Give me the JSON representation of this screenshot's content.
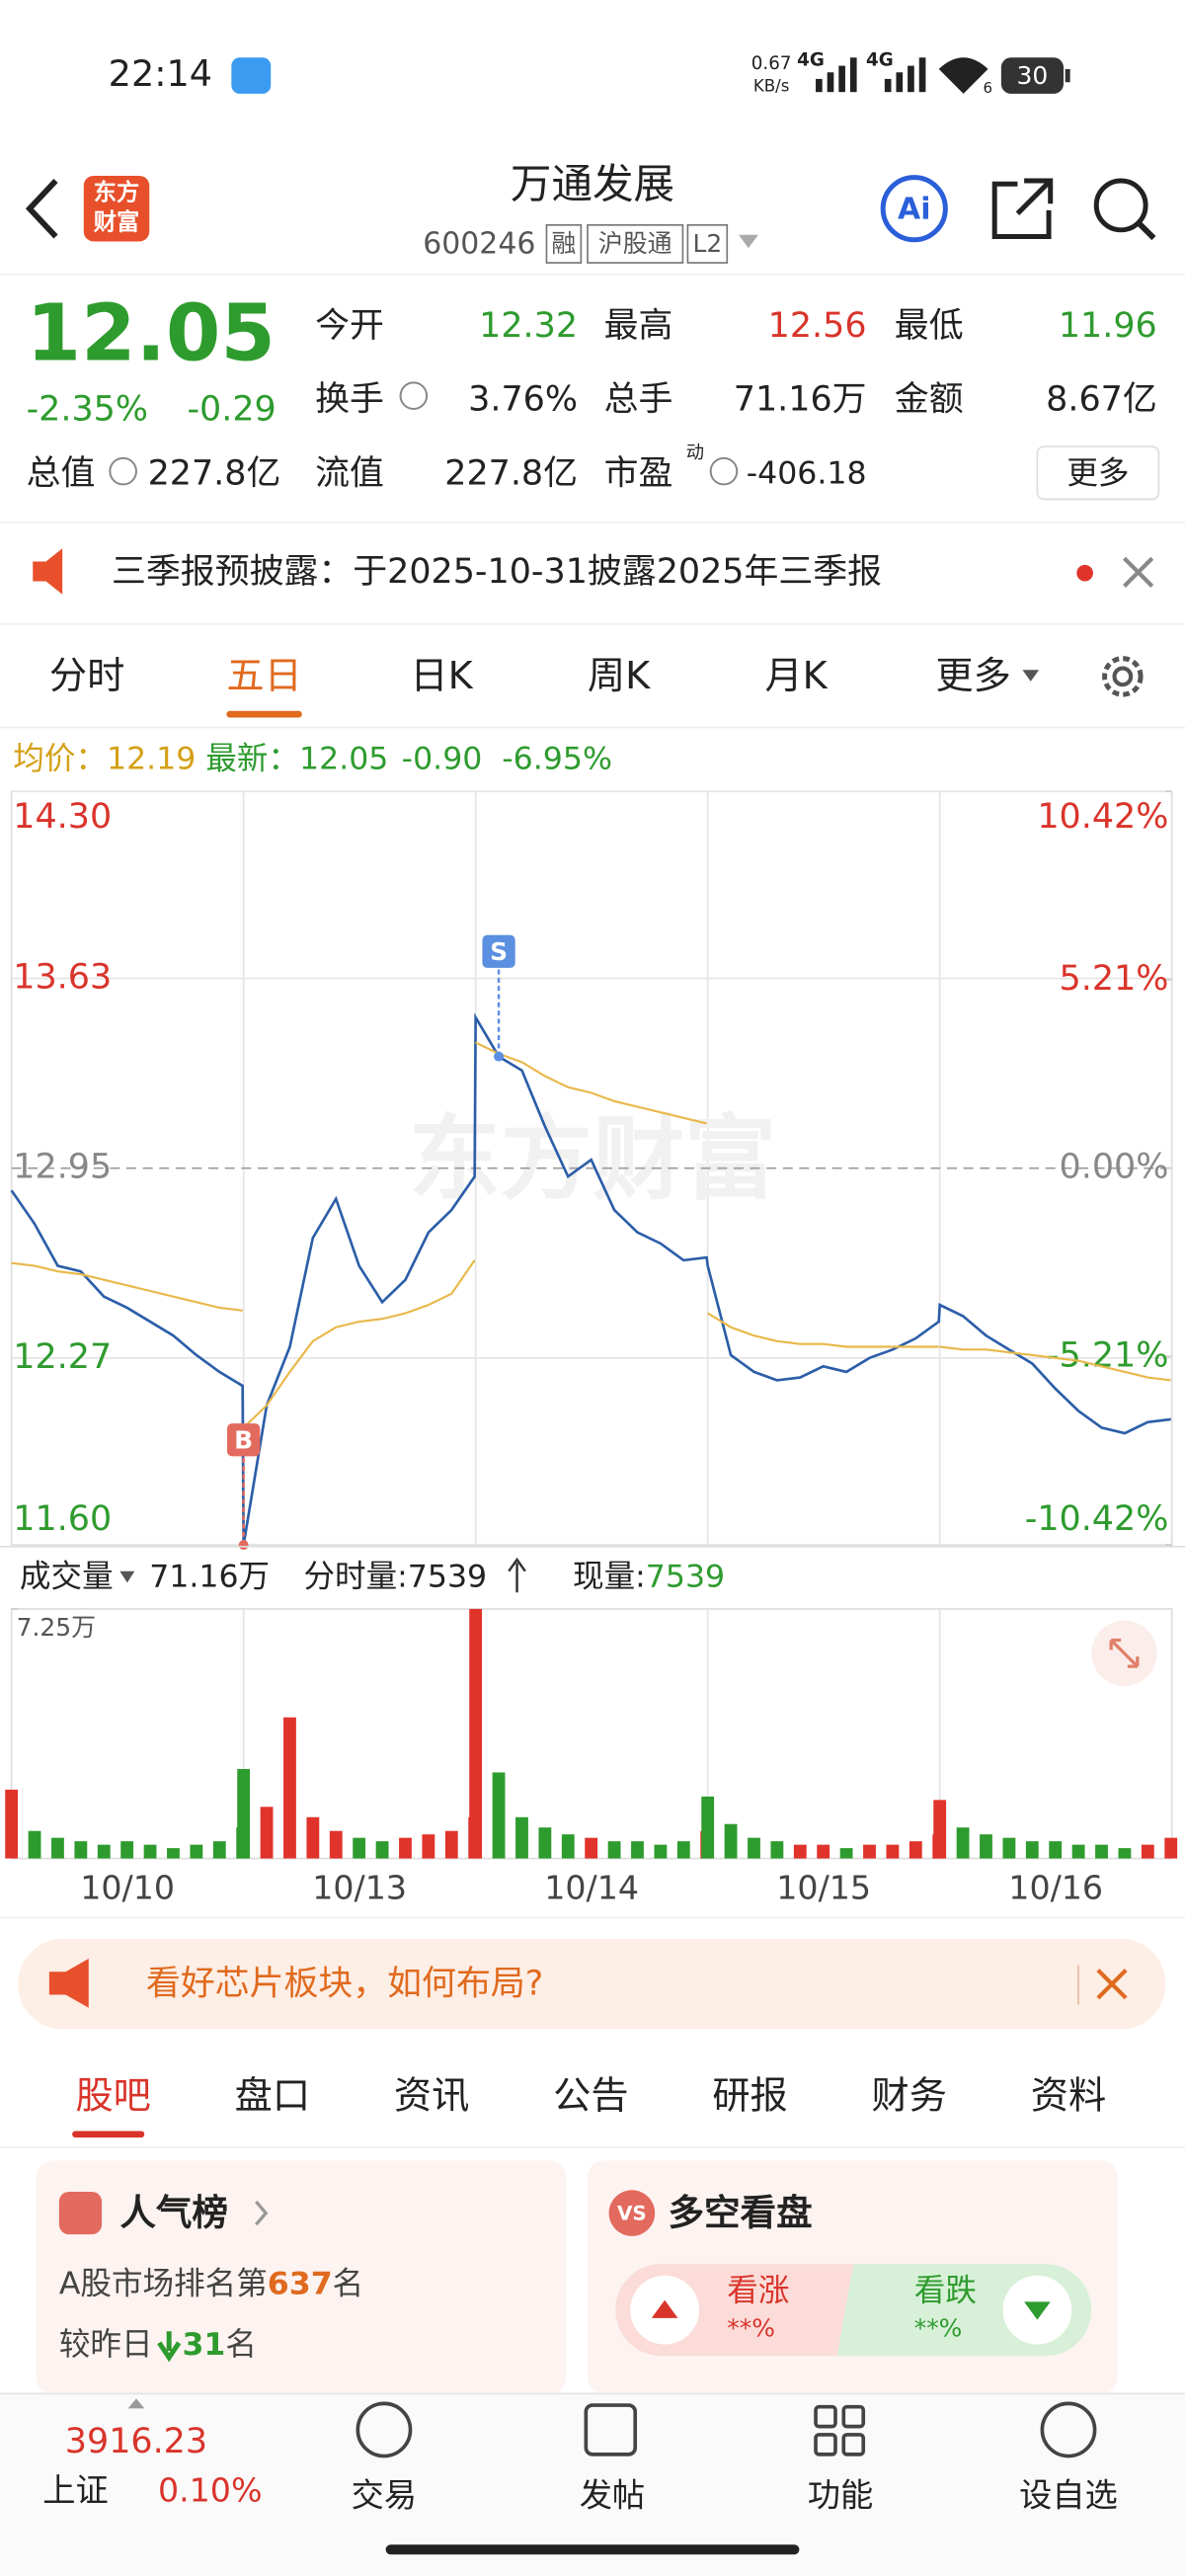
{
  "status_bar": {
    "time": "22:14",
    "net_speed": "0.67",
    "net_unit": "KB/s",
    "signal_1": "4G",
    "signal_2": "4G",
    "wifi": "6",
    "battery": "30"
  },
  "header": {
    "logo": [
      "东方",
      "财富"
    ],
    "title": "万通发展",
    "code": "600246",
    "badges": [
      "融",
      "沪股通",
      "L2"
    ],
    "ai": "Ai"
  },
  "quote": {
    "price": "12.05",
    "change_pct": "-2.35%",
    "change": "-0.29",
    "fields": [
      {
        "label": "今开",
        "value": "12.32"
      },
      {
        "label": "最高",
        "value": "12.56"
      },
      {
        "label": "最低",
        "value": "11.96"
      },
      {
        "label": "换手",
        "value": "3.76%"
      },
      {
        "label": "总手",
        "value": "71.16万"
      },
      {
        "label": "金额",
        "value": "8.67亿"
      },
      {
        "label": "总值",
        "value": "227.8亿"
      },
      {
        "label": "流值",
        "value": "227.8亿"
      },
      {
        "label": "市盈",
        "sup": "动",
        "value": "-406.18"
      }
    ],
    "more": "更多"
  },
  "notice": "三季报预披露：于2025-10-31披露2025年三季报",
  "tabs": [
    "分时",
    "五日",
    "日K",
    "周K",
    "月K",
    "更多"
  ],
  "legend": {
    "avg_label": "均价：",
    "avg": "12.19",
    "latest_label": "最新：",
    "latest": "12.05",
    "change": "-0.90",
    "change_pct": "-6.95%"
  },
  "chart_data": [
    {
      "type": "line",
      "watermark": "东方财富",
      "x": [
        0,
        24,
        48,
        72,
        96,
        120,
        144,
        168,
        192,
        216,
        240,
        241,
        265,
        289,
        313,
        337,
        361,
        385,
        409,
        433,
        457,
        481,
        482,
        506,
        530,
        554,
        578,
        602,
        626,
        650,
        674,
        698,
        722,
        723,
        747,
        771,
        795,
        819,
        843,
        867,
        891,
        915,
        939,
        963,
        964,
        988,
        1012,
        1036,
        1060,
        1084,
        1108,
        1132,
        1156,
        1180,
        1204
      ],
      "xlim": [
        0,
        1205
      ],
      "ylim": [
        11.6,
        14.3
      ],
      "yticks": [
        {
          "value": 14.3,
          "label": "14.30"
        },
        13.63,
        12.95,
        12.27,
        {
          "value": 11.6,
          "label": "11.60"
        }
      ],
      "y2lim": [
        -10.42,
        10.42
      ],
      "y2ticks": [
        {
          "value": 10.42,
          "label": "10.42%"
        },
        {
          "value": 5.21,
          "label": "5.21%"
        },
        {
          "value": 0,
          "label": "0.00%"
        },
        {
          "value": -5.21,
          "label": "-5.21%"
        },
        {
          "value": -10.42,
          "label": "-10.42%"
        }
      ],
      "series": [
        {
          "color": "#2c5ea8",
          "values": [
            12.87,
            12.75,
            12.6,
            12.58,
            12.49,
            12.45,
            12.4,
            12.35,
            12.28,
            12.22,
            12.17,
            11.6,
            12.1,
            12.31,
            12.7,
            12.84,
            12.6,
            12.47,
            12.55,
            12.72,
            12.8,
            12.92,
            13.49,
            13.35,
            13.3,
            13.1,
            12.92,
            12.98,
            12.8,
            12.72,
            12.68,
            12.62,
            12.63,
            12.6,
            12.28,
            12.22,
            12.19,
            12.2,
            12.24,
            12.22,
            12.27,
            12.3,
            12.34,
            12.4,
            12.46,
            12.42,
            12.35,
            12.3,
            12.25,
            12.16,
            12.08,
            12.02,
            12.0,
            12.04,
            12.05
          ]
        },
        {
          "color": "#e8b84a",
          "values": [
            12.61,
            12.6,
            12.58,
            12.57,
            12.55,
            12.53,
            12.51,
            12.49,
            12.47,
            12.45,
            12.44,
            12.02,
            12.1,
            12.22,
            12.33,
            12.38,
            12.4,
            12.41,
            12.43,
            12.46,
            12.5,
            12.62,
            13.4,
            13.36,
            13.33,
            13.28,
            13.24,
            13.22,
            13.19,
            13.17,
            13.15,
            13.13,
            13.11,
            12.43,
            12.38,
            12.35,
            12.33,
            12.32,
            12.32,
            12.31,
            12.31,
            12.31,
            12.31,
            12.31,
            12.31,
            12.3,
            12.3,
            12.29,
            12.28,
            12.27,
            12.26,
            12.24,
            12.22,
            12.2,
            12.19
          ]
        }
      ],
      "annotations": [
        {
          "label": "B",
          "x": 241,
          "value": 11.6,
          "color": "#e36a5e"
        },
        {
          "label": "S",
          "x": 506,
          "value": 13.35,
          "color": "#5b8fe0"
        }
      ]
    },
    {
      "type": "bar",
      "x": [
        0,
        24,
        48,
        72,
        96,
        120,
        144,
        168,
        192,
        216,
        240,
        241,
        265,
        289,
        313,
        337,
        361,
        385,
        409,
        433,
        457,
        481,
        482,
        506,
        530,
        554,
        578,
        602,
        626,
        650,
        674,
        698,
        722,
        723,
        747,
        771,
        795,
        819,
        843,
        867,
        891,
        915,
        939,
        963,
        964,
        988,
        1012,
        1036,
        1060,
        1084,
        1108,
        1132,
        1156,
        1180,
        1204
      ],
      "xlim": [
        0,
        1205
      ],
      "xticks": [
        {
          "value": 120.5,
          "label": "10/10"
        },
        {
          "value": 361.5,
          "label": "10/13"
        },
        {
          "value": 602.5,
          "label": "10/14"
        },
        {
          "value": 843.5,
          "label": "10/15"
        },
        {
          "value": 1084.5,
          "label": "10/16"
        }
      ],
      "ylim": [
        0,
        7.25
      ],
      "yticks": [
        {
          "value": 7.25,
          "label": "7.25万"
        }
      ],
      "values": [
        2.0,
        0.8,
        0.6,
        0.5,
        0.4,
        0.5,
        0.4,
        0.3,
        0.4,
        0.5,
        0.9,
        2.6,
        1.5,
        4.1,
        1.2,
        0.8,
        0.6,
        0.5,
        0.6,
        0.7,
        0.8,
        1.2,
        7.25,
        2.5,
        1.2,
        0.9,
        0.7,
        0.6,
        0.5,
        0.5,
        0.4,
        0.5,
        0.8,
        1.8,
        1.0,
        0.6,
        0.5,
        0.4,
        0.4,
        0.3,
        0.4,
        0.4,
        0.5,
        0.7,
        1.7,
        0.9,
        0.7,
        0.6,
        0.5,
        0.5,
        0.4,
        0.4,
        0.3,
        0.4,
        0.6
      ],
      "up_color": "#e0332b",
      "down_color": "#2e9b2e"
    }
  ],
  "volume_header": {
    "label": "成交量",
    "total": "71.16万",
    "tick_label": "分时量:",
    "tick_value": "7539",
    "now_label": "现量:",
    "now_value": "7539"
  },
  "banner": "看好芯片板块，如何布局?",
  "sub_tabs": [
    "股吧",
    "盘口",
    "资讯",
    "公告",
    "研报",
    "财务",
    "资料"
  ],
  "cards": {
    "popularity": {
      "title": "人气榜",
      "rank_prefix": "A股市场排名第",
      "rank": "637",
      "rank_suffix": "名",
      "change_prefix": "较昨日",
      "change": "31",
      "change_suffix": "名"
    },
    "sentiment": {
      "icon": "VS",
      "title": "多空看盘",
      "bull": "看涨",
      "bull_pct": "**%",
      "bear": "看跌",
      "bear_pct": "**%"
    }
  },
  "bottom_nav": {
    "index_value": "3916.23",
    "index_name": "上证",
    "index_change": "0.10%",
    "items": [
      "交易",
      "发帖",
      "功能",
      "设自选"
    ]
  }
}
